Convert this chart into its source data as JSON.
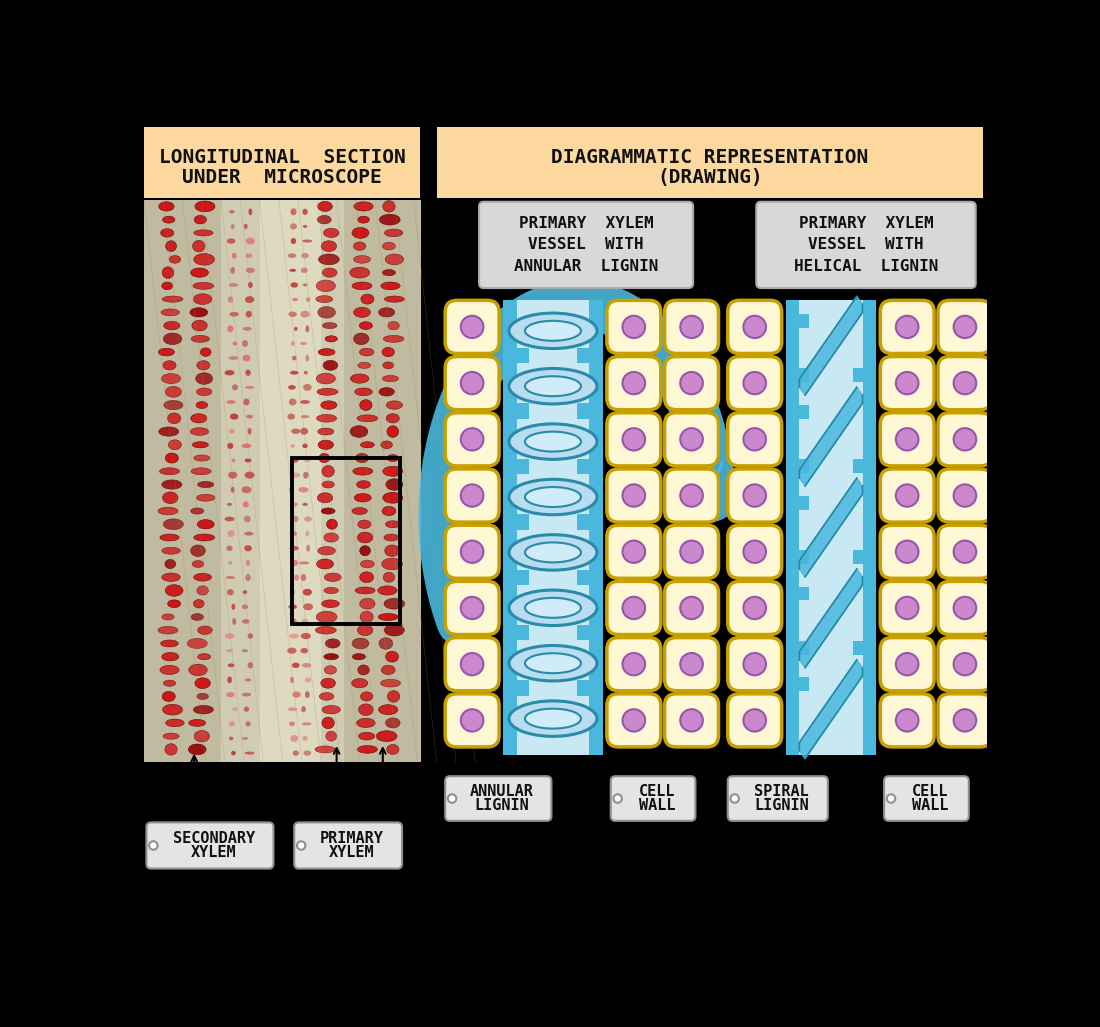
{
  "bg_color": "#000000",
  "title_left_1": "LONGITUDINAL  SECTION",
  "title_left_2": "UNDER  MICROSCOPE",
  "title_right_1": "DIAGRAMMATIC REPRESENTATION",
  "title_right_2": "(DRAWING)",
  "header_bg": "#fdd9a0",
  "sub_annular_1": "PRIMARY  XYLEM",
  "sub_annular_2": "VESSEL  WITH",
  "sub_annular_3": "ANNULAR  LIGNIN",
  "sub_helical_1": "PRIMARY  XYLEM",
  "sub_helical_2": "VESSEL  WITH",
  "sub_helical_3": "HELICAL  LIGNIN",
  "sub_bg": "#d8d8d8",
  "sub_border": "#aaaaaa",
  "cell_bg": "#fef9d4",
  "cell_border": "#c8a000",
  "cell_border_lw": 2.5,
  "nucleus_color": "#cc88cc",
  "nucleus_border": "#9955aa",
  "vessel_bg": "#c8e8f4",
  "vessel_blue": "#4ab8dc",
  "vessel_dark": "#2288aa",
  "arrow_blue": "#4ab8dc",
  "label_bg": "#e4e4e4",
  "label_border": "#909090",
  "mic_bg": "#c0baa0"
}
